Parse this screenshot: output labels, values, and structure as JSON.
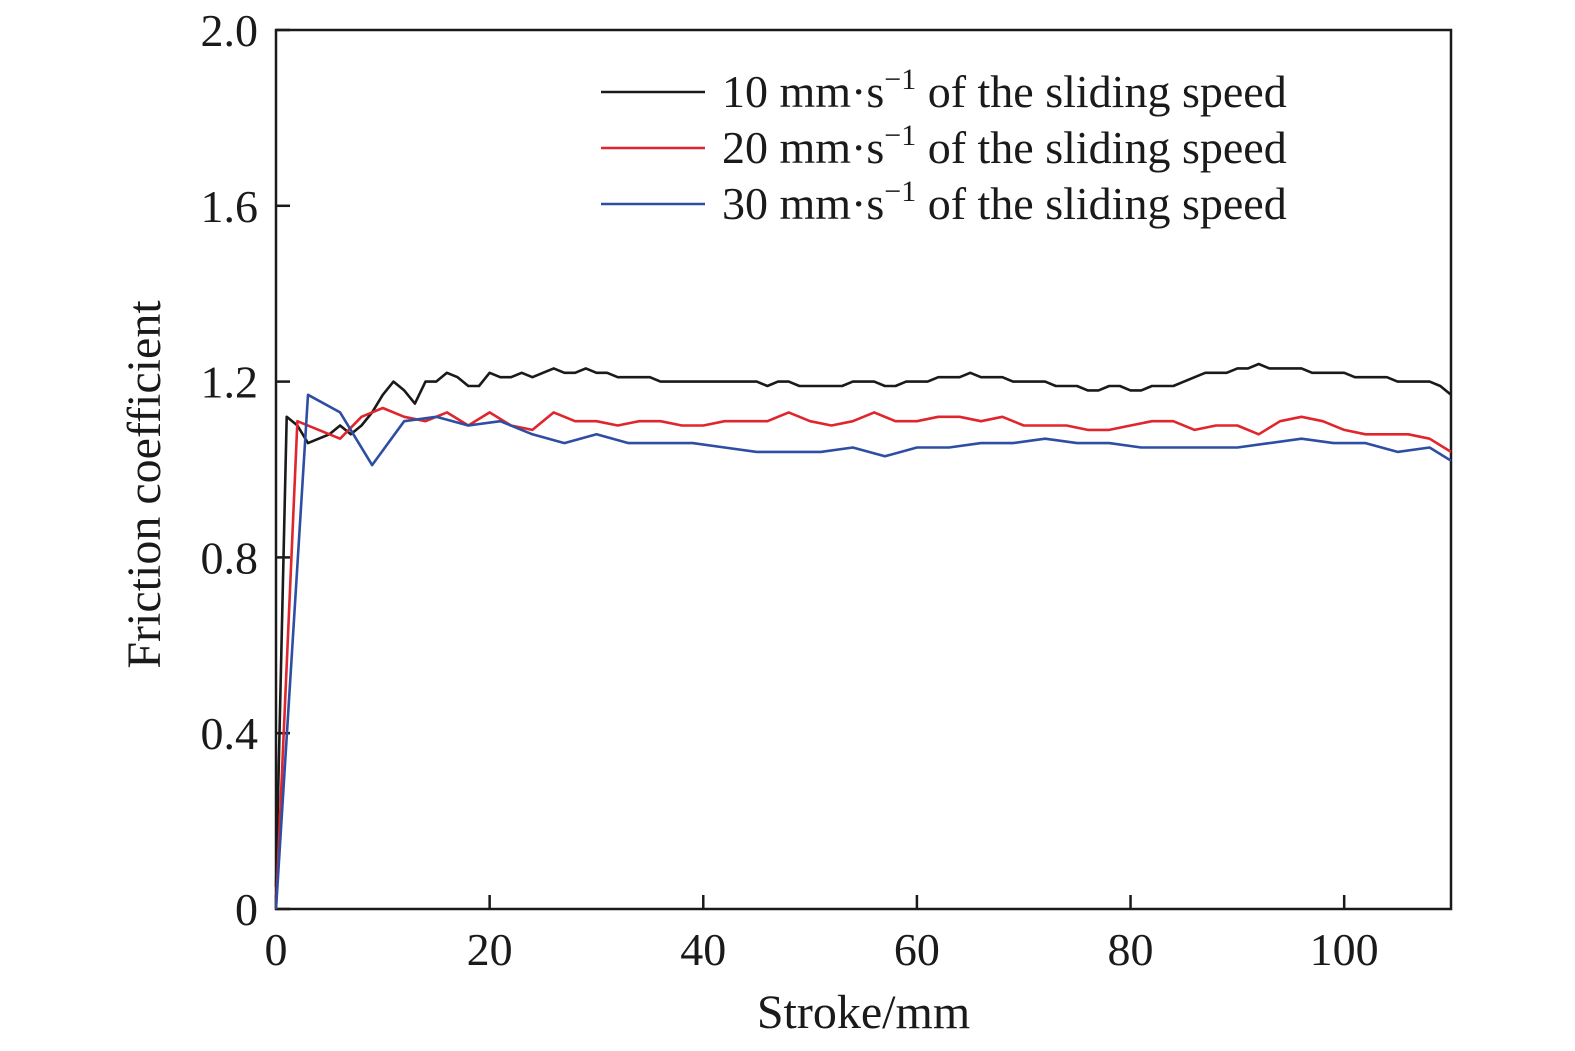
{
  "chart_data": {
    "type": "line",
    "xlabel": "Stroke/mm",
    "ylabel": "Friction coefficient",
    "xlim": [
      0,
      110
    ],
    "ylim": [
      0,
      2.0
    ],
    "x_ticks": [
      0,
      20,
      40,
      60,
      80,
      100
    ],
    "x_tick_labels": [
      "0",
      "20",
      "40",
      "60",
      "80",
      "100"
    ],
    "y_ticks": [
      0,
      0.4,
      0.8,
      1.2,
      1.6,
      2.0
    ],
    "y_tick_labels": [
      "0",
      "0.4",
      "0.8",
      "1.2",
      "1.6",
      "2.0"
    ],
    "grid": false,
    "legend_position": "top-right",
    "series": [
      {
        "name": "10 mm·s⁻¹ of the sliding speed",
        "name_parts": {
          "value": "10",
          "unit": "mm·s",
          "exp": "−1",
          "suffix": "of the sliding speed"
        },
        "color": "#1a1a1a",
        "x": [
          0,
          1,
          2,
          3,
          4,
          5,
          6,
          7,
          8,
          9,
          10,
          11,
          12,
          13,
          14,
          15,
          16,
          17,
          18,
          19,
          20,
          21,
          22,
          23,
          24,
          25,
          26,
          27,
          28,
          29,
          30,
          31,
          32,
          33,
          34,
          35,
          36,
          37,
          38,
          39,
          40,
          41,
          42,
          43,
          44,
          45,
          46,
          47,
          48,
          49,
          50,
          51,
          52,
          53,
          54,
          55,
          56,
          57,
          58,
          59,
          60,
          61,
          62,
          63,
          64,
          65,
          66,
          67,
          68,
          69,
          70,
          71,
          72,
          73,
          74,
          75,
          76,
          77,
          78,
          79,
          80,
          81,
          82,
          83,
          84,
          85,
          86,
          87,
          88,
          89,
          90,
          91,
          92,
          93,
          94,
          95,
          96,
          97,
          98,
          99,
          100,
          101,
          102,
          103,
          104,
          105,
          106,
          107,
          108,
          109,
          110
        ],
        "y": [
          0.05,
          1.12,
          1.1,
          1.06,
          1.07,
          1.08,
          1.1,
          1.08,
          1.1,
          1.13,
          1.17,
          1.2,
          1.18,
          1.15,
          1.2,
          1.2,
          1.22,
          1.21,
          1.19,
          1.19,
          1.22,
          1.21,
          1.21,
          1.22,
          1.21,
          1.22,
          1.23,
          1.22,
          1.22,
          1.23,
          1.22,
          1.22,
          1.21,
          1.21,
          1.21,
          1.21,
          1.2,
          1.2,
          1.2,
          1.2,
          1.2,
          1.2,
          1.2,
          1.2,
          1.2,
          1.2,
          1.19,
          1.2,
          1.2,
          1.19,
          1.19,
          1.19,
          1.19,
          1.19,
          1.2,
          1.2,
          1.2,
          1.19,
          1.19,
          1.2,
          1.2,
          1.2,
          1.21,
          1.21,
          1.21,
          1.22,
          1.21,
          1.21,
          1.21,
          1.2,
          1.2,
          1.2,
          1.2,
          1.19,
          1.19,
          1.19,
          1.18,
          1.18,
          1.19,
          1.19,
          1.18,
          1.18,
          1.19,
          1.19,
          1.19,
          1.2,
          1.21,
          1.22,
          1.22,
          1.22,
          1.23,
          1.23,
          1.24,
          1.23,
          1.23,
          1.23,
          1.23,
          1.22,
          1.22,
          1.22,
          1.22,
          1.21,
          1.21,
          1.21,
          1.21,
          1.2,
          1.2,
          1.2,
          1.2,
          1.19,
          1.17
        ]
      },
      {
        "name": "20 mm·s⁻¹ of the sliding speed",
        "name_parts": {
          "value": "20",
          "unit": "mm·s",
          "exp": "−1",
          "suffix": "of the sliding speed"
        },
        "color": "#e0252d",
        "x": [
          0,
          2,
          4,
          6,
          8,
          10,
          12,
          14,
          16,
          18,
          20,
          22,
          24,
          26,
          28,
          30,
          32,
          34,
          36,
          38,
          40,
          42,
          44,
          46,
          48,
          50,
          52,
          54,
          56,
          58,
          60,
          62,
          64,
          66,
          68,
          70,
          72,
          74,
          76,
          78,
          80,
          82,
          84,
          86,
          88,
          90,
          92,
          94,
          96,
          98,
          100,
          102,
          104,
          106,
          108,
          110
        ],
        "y": [
          0.0,
          1.11,
          1.09,
          1.07,
          1.12,
          1.14,
          1.12,
          1.11,
          1.13,
          1.1,
          1.13,
          1.1,
          1.09,
          1.13,
          1.11,
          1.11,
          1.1,
          1.11,
          1.11,
          1.1,
          1.1,
          1.11,
          1.11,
          1.11,
          1.13,
          1.11,
          1.1,
          1.11,
          1.13,
          1.11,
          1.11,
          1.12,
          1.12,
          1.11,
          1.12,
          1.1,
          1.1,
          1.1,
          1.09,
          1.09,
          1.1,
          1.11,
          1.11,
          1.09,
          1.1,
          1.1,
          1.08,
          1.11,
          1.12,
          1.11,
          1.09,
          1.08,
          1.08,
          1.08,
          1.07,
          1.04
        ]
      },
      {
        "name": "30 mm·s⁻¹ of the sliding speed",
        "name_parts": {
          "value": "30",
          "unit": "mm·s",
          "exp": "−1",
          "suffix": "of the sliding speed"
        },
        "color": "#2e4ea3",
        "x": [
          0,
          3,
          6,
          9,
          12,
          15,
          18,
          21,
          24,
          27,
          30,
          33,
          36,
          39,
          42,
          45,
          48,
          51,
          54,
          57,
          60,
          63,
          66,
          69,
          72,
          75,
          78,
          81,
          84,
          87,
          90,
          93,
          96,
          99,
          102,
          105,
          108,
          110
        ],
        "y": [
          0.0,
          1.17,
          1.13,
          1.01,
          1.11,
          1.12,
          1.1,
          1.11,
          1.08,
          1.06,
          1.08,
          1.06,
          1.06,
          1.06,
          1.05,
          1.04,
          1.04,
          1.04,
          1.05,
          1.03,
          1.05,
          1.05,
          1.06,
          1.06,
          1.07,
          1.06,
          1.06,
          1.05,
          1.05,
          1.05,
          1.05,
          1.06,
          1.07,
          1.06,
          1.06,
          1.04,
          1.05,
          1.02
        ]
      }
    ]
  }
}
